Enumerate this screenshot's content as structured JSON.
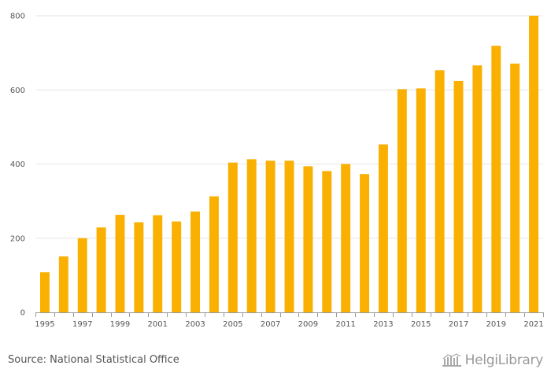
{
  "chart_data": {
    "type": "bar",
    "categories": [
      "1995",
      "1996",
      "1997",
      "1998",
      "1999",
      "2000",
      "2001",
      "2002",
      "2003",
      "2004",
      "2005",
      "2006",
      "2007",
      "2008",
      "2009",
      "2010",
      "2011",
      "2012",
      "2013",
      "2014",
      "2015",
      "2016",
      "2017",
      "2018",
      "2019",
      "2020",
      "2021"
    ],
    "values": [
      108,
      151,
      200,
      229,
      263,
      243,
      262,
      245,
      272,
      313,
      404,
      413,
      409,
      409,
      394,
      381,
      400,
      373,
      453,
      602,
      604,
      653,
      624,
      666,
      719,
      671,
      800
    ],
    "xtick_labels": [
      "1995",
      "1997",
      "1999",
      "2001",
      "2003",
      "2005",
      "2007",
      "2009",
      "2011",
      "2013",
      "2015",
      "2017",
      "2019",
      "2021"
    ],
    "yticks": [
      0,
      200,
      400,
      600,
      800
    ],
    "ylim": [
      0,
      800
    ],
    "title": "",
    "xlabel": "",
    "ylabel": "",
    "grid": true,
    "bar_color": "#F9B000",
    "grid_color": "#e6e6e6"
  },
  "footer": {
    "source": "Source: National Statistical Office",
    "brand": "HelgiLibrary"
  }
}
